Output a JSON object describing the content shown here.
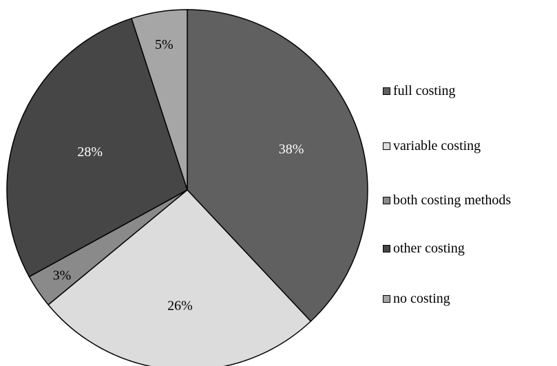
{
  "chart_data": {
    "type": "pie",
    "title": "",
    "slices": [
      {
        "label": "full costing",
        "value": 38,
        "display": "38%",
        "color": "#606060",
        "text_color": "#ffffff"
      },
      {
        "label": "variable costing",
        "value": 26,
        "display": "26%",
        "color": "#dcdcdc",
        "text_color": "#000000"
      },
      {
        "label": "both costing methods",
        "value": 3,
        "display": "3%",
        "color": "#8a8a8a",
        "text_color": "#000000"
      },
      {
        "label": "other costing",
        "value": 28,
        "display": "28%",
        "color": "#464646",
        "text_color": "#ffffff"
      },
      {
        "label": "no costing",
        "value": 5,
        "display": "5%",
        "color": "#a6a6a6",
        "text_color": "#000000"
      }
    ],
    "legend_position": "right",
    "start_angle": "12 o'clock",
    "direction": "clockwise"
  }
}
